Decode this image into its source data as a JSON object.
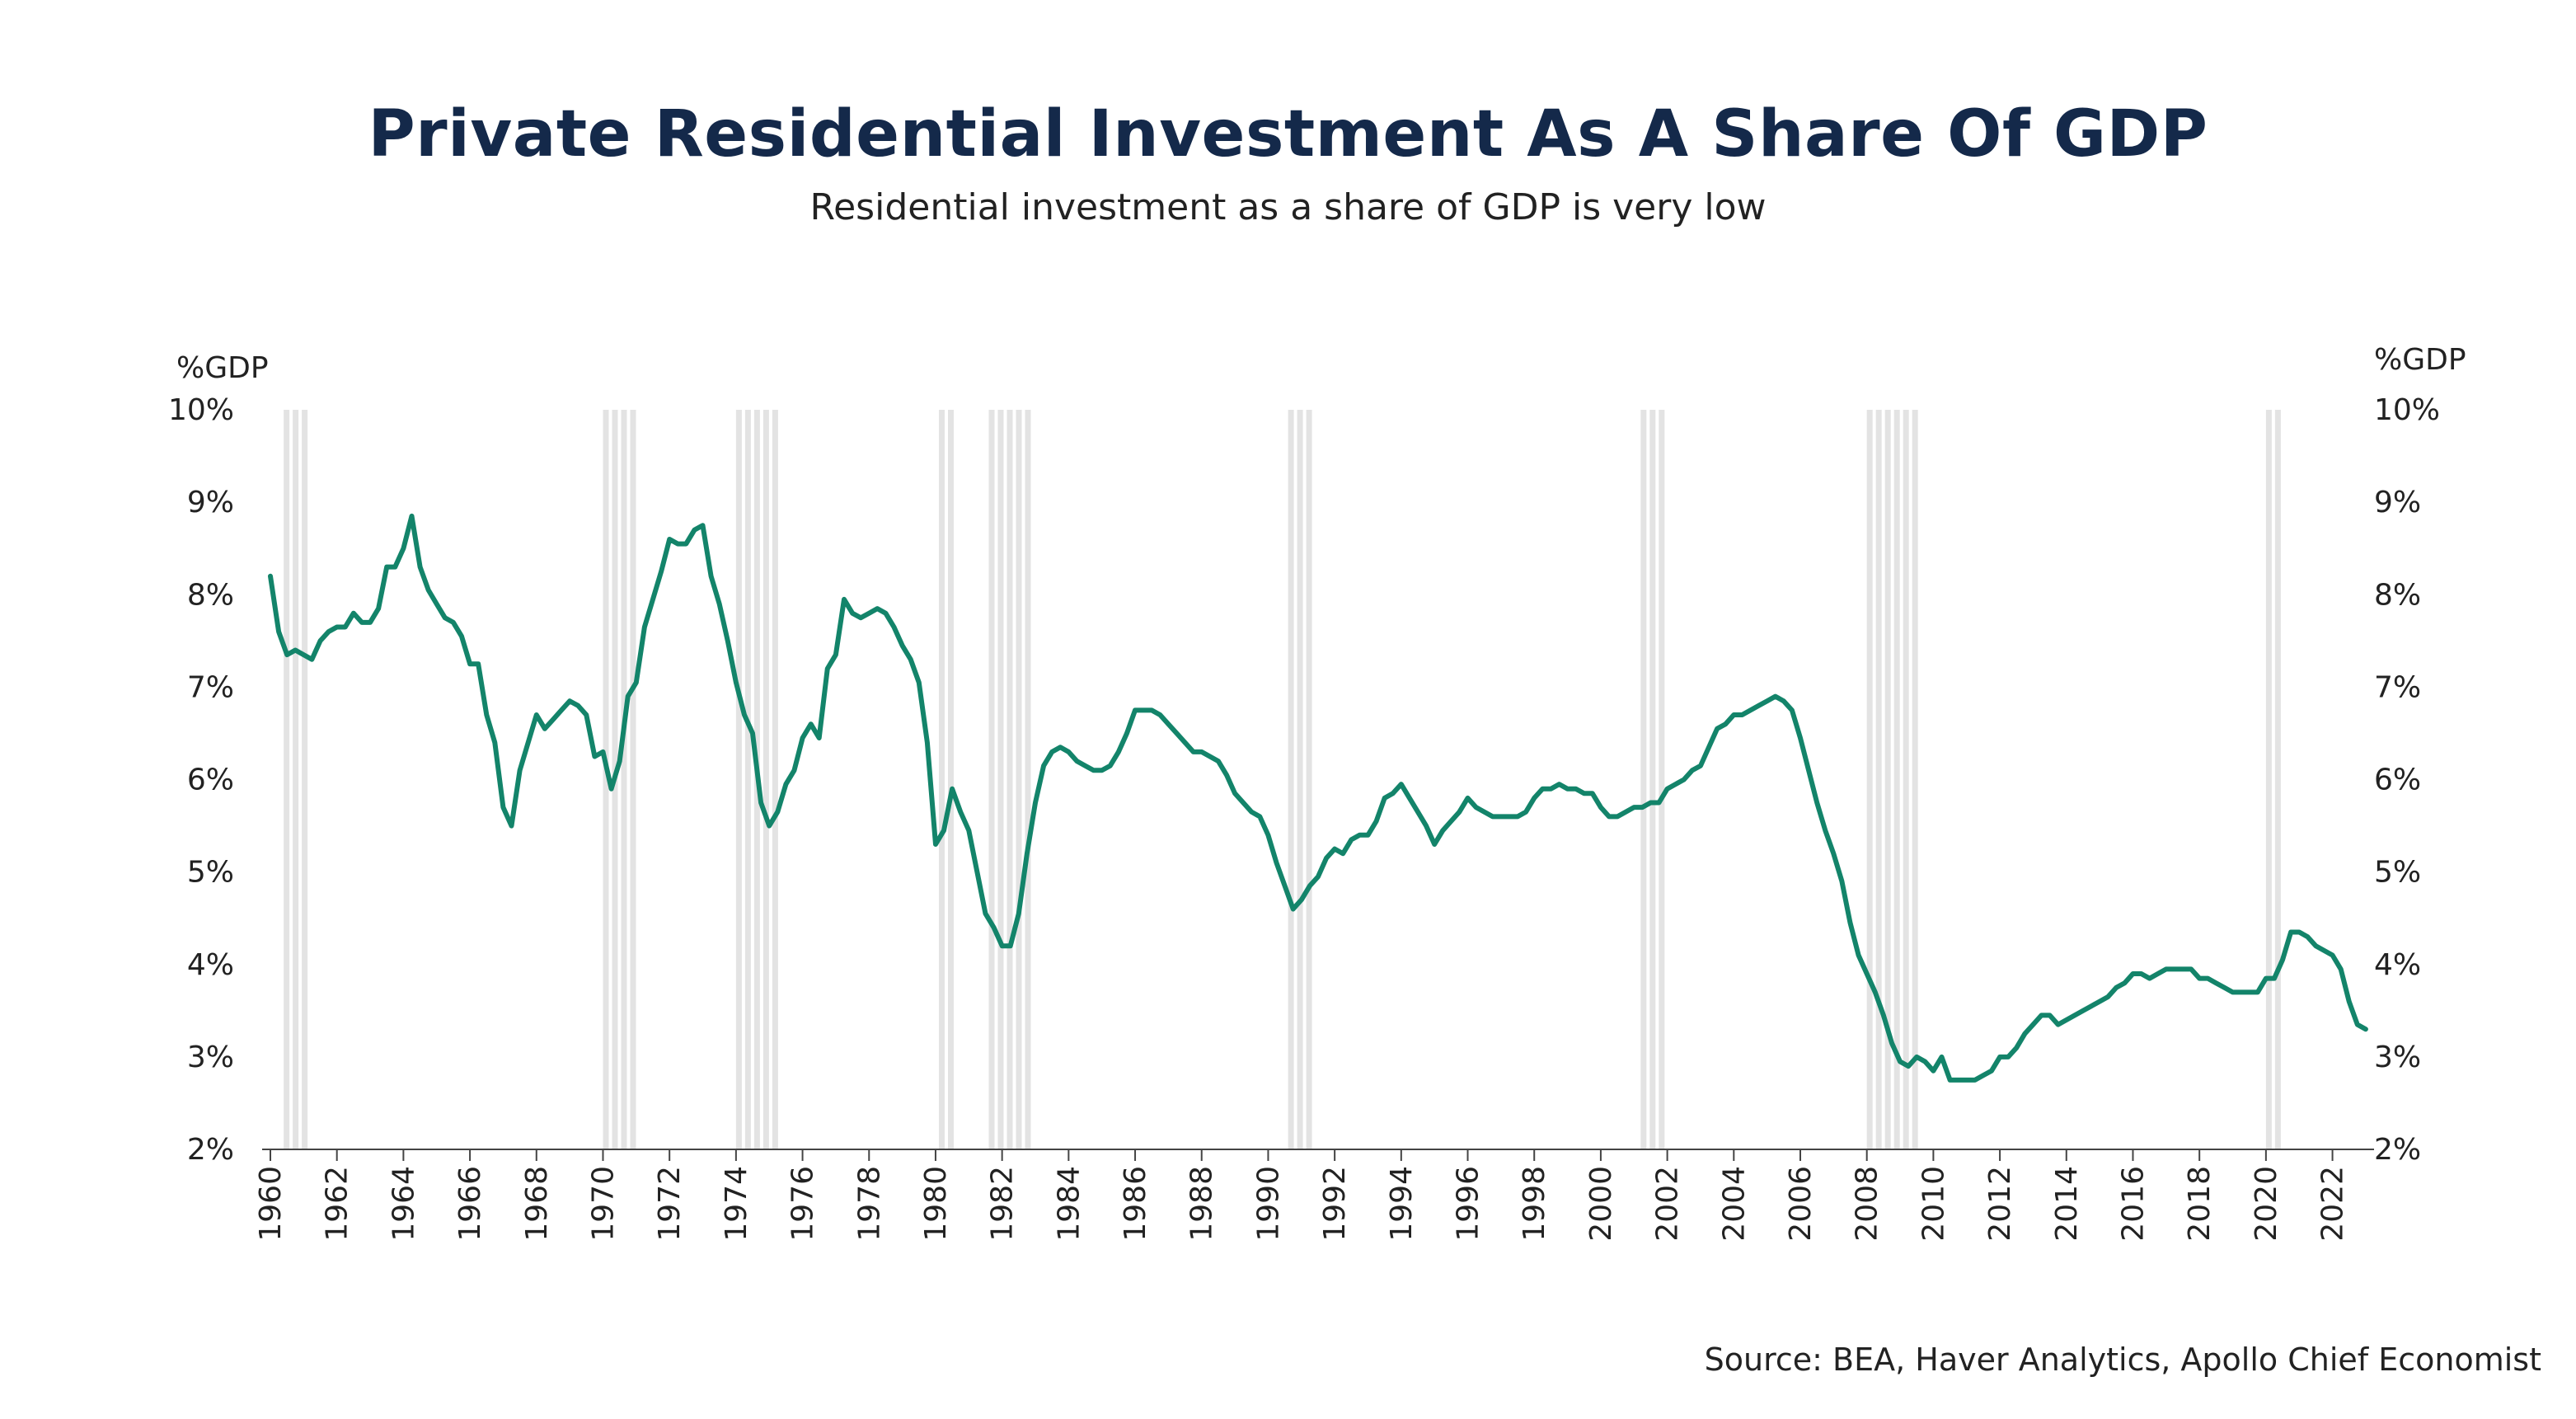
{
  "title": "Private Residential Investment As A Share Of GDP",
  "subtitle": "Residential investment as a share of GDP is very low",
  "source": "Source: BEA, Haver Analytics, Apollo Chief Economist",
  "colors": {
    "line": "#13846a",
    "recession": "#e3e3e3",
    "title": "#14294a"
  },
  "chart_data": {
    "type": "line",
    "title": "Private Residential Investment As A Share Of GDP",
    "subtitle": "Residential investment as a share of GDP is very low",
    "ylabel_left": "%GDP",
    "ylabel_right": "%GDP",
    "ylim": [
      2,
      10
    ],
    "xlim": [
      1960,
      2023.25
    ],
    "yticks": [
      "2%",
      "3%",
      "4%",
      "5%",
      "6%",
      "7%",
      "8%",
      "9%",
      "10%"
    ],
    "xticks": [
      "1960",
      "1962",
      "1964",
      "1966",
      "1968",
      "1970",
      "1972",
      "1974",
      "1976",
      "1978",
      "1980",
      "1982",
      "1984",
      "1986",
      "1988",
      "1990",
      "1992",
      "1994",
      "1996",
      "1998",
      "2000",
      "2002",
      "2004",
      "2006",
      "2008",
      "2010",
      "2012",
      "2014",
      "2016",
      "2018",
      "2020",
      "2022"
    ],
    "grid": false,
    "recessions": [
      [
        1960.4,
        1961.1
      ],
      [
        1970.0,
        1970.9
      ],
      [
        1974.0,
        1975.2
      ],
      [
        1980.1,
        1980.5
      ],
      [
        1981.6,
        1982.9
      ],
      [
        1990.6,
        1991.2
      ],
      [
        2001.2,
        2001.9
      ],
      [
        2008.0,
        2009.5
      ],
      [
        2020.0,
        2020.4
      ]
    ],
    "series": [
      {
        "values": [
          [
            1960.0,
            8.2
          ],
          [
            1960.25,
            7.6
          ],
          [
            1960.5,
            7.35
          ],
          [
            1960.75,
            7.4
          ],
          [
            1961.0,
            7.35
          ],
          [
            1961.25,
            7.3
          ],
          [
            1961.5,
            7.5
          ],
          [
            1961.75,
            7.6
          ],
          [
            1962.0,
            7.65
          ],
          [
            1962.25,
            7.65
          ],
          [
            1962.5,
            7.8
          ],
          [
            1962.75,
            7.7
          ],
          [
            1963.0,
            7.7
          ],
          [
            1963.25,
            7.85
          ],
          [
            1963.5,
            8.3
          ],
          [
            1963.75,
            8.3
          ],
          [
            1964.0,
            8.5
          ],
          [
            1964.25,
            8.85
          ],
          [
            1964.5,
            8.3
          ],
          [
            1964.75,
            8.05
          ],
          [
            1965.0,
            7.9
          ],
          [
            1965.25,
            7.75
          ],
          [
            1965.5,
            7.7
          ],
          [
            1965.75,
            7.55
          ],
          [
            1966.0,
            7.25
          ],
          [
            1966.25,
            7.25
          ],
          [
            1966.5,
            6.7
          ],
          [
            1966.75,
            6.4
          ],
          [
            1967.0,
            5.7
          ],
          [
            1967.25,
            5.5
          ],
          [
            1967.5,
            6.1
          ],
          [
            1967.75,
            6.4
          ],
          [
            1968.0,
            6.7
          ],
          [
            1968.25,
            6.55
          ],
          [
            1968.5,
            6.65
          ],
          [
            1968.75,
            6.75
          ],
          [
            1969.0,
            6.85
          ],
          [
            1969.25,
            6.8
          ],
          [
            1969.5,
            6.7
          ],
          [
            1969.75,
            6.25
          ],
          [
            1970.0,
            6.3
          ],
          [
            1970.25,
            5.9
          ],
          [
            1970.5,
            6.2
          ],
          [
            1970.75,
            6.9
          ],
          [
            1971.0,
            7.05
          ],
          [
            1971.25,
            7.65
          ],
          [
            1971.5,
            7.95
          ],
          [
            1971.75,
            8.25
          ],
          [
            1972.0,
            8.6
          ],
          [
            1972.25,
            8.55
          ],
          [
            1972.5,
            8.55
          ],
          [
            1972.75,
            8.7
          ],
          [
            1973.0,
            8.75
          ],
          [
            1973.25,
            8.2
          ],
          [
            1973.5,
            7.9
          ],
          [
            1973.75,
            7.5
          ],
          [
            1974.0,
            7.05
          ],
          [
            1974.25,
            6.7
          ],
          [
            1974.5,
            6.5
          ],
          [
            1974.75,
            5.75
          ],
          [
            1975.0,
            5.5
          ],
          [
            1975.25,
            5.65
          ],
          [
            1975.5,
            5.95
          ],
          [
            1975.75,
            6.1
          ],
          [
            1976.0,
            6.45
          ],
          [
            1976.25,
            6.6
          ],
          [
            1976.5,
            6.45
          ],
          [
            1976.75,
            7.2
          ],
          [
            1977.0,
            7.35
          ],
          [
            1977.25,
            7.95
          ],
          [
            1977.5,
            7.8
          ],
          [
            1977.75,
            7.75
          ],
          [
            1978.0,
            7.8
          ],
          [
            1978.25,
            7.85
          ],
          [
            1978.5,
            7.8
          ],
          [
            1978.75,
            7.65
          ],
          [
            1979.0,
            7.45
          ],
          [
            1979.25,
            7.3
          ],
          [
            1979.5,
            7.05
          ],
          [
            1979.75,
            6.4
          ],
          [
            1980.0,
            5.3
          ],
          [
            1980.25,
            5.45
          ],
          [
            1980.5,
            5.9
          ],
          [
            1980.75,
            5.65
          ],
          [
            1981.0,
            5.45
          ],
          [
            1981.25,
            5.0
          ],
          [
            1981.5,
            4.55
          ],
          [
            1981.75,
            4.4
          ],
          [
            1982.0,
            4.2
          ],
          [
            1982.25,
            4.2
          ],
          [
            1982.5,
            4.55
          ],
          [
            1982.75,
            5.2
          ],
          [
            1983.0,
            5.75
          ],
          [
            1983.25,
            6.15
          ],
          [
            1983.5,
            6.3
          ],
          [
            1983.75,
            6.35
          ],
          [
            1984.0,
            6.3
          ],
          [
            1984.25,
            6.2
          ],
          [
            1984.5,
            6.15
          ],
          [
            1984.75,
            6.1
          ],
          [
            1985.0,
            6.1
          ],
          [
            1985.25,
            6.15
          ],
          [
            1985.5,
            6.3
          ],
          [
            1985.75,
            6.5
          ],
          [
            1986.0,
            6.75
          ],
          [
            1986.25,
            6.75
          ],
          [
            1986.5,
            6.75
          ],
          [
            1986.75,
            6.7
          ],
          [
            1987.0,
            6.6
          ],
          [
            1987.25,
            6.5
          ],
          [
            1987.5,
            6.4
          ],
          [
            1987.75,
            6.3
          ],
          [
            1988.0,
            6.3
          ],
          [
            1988.25,
            6.25
          ],
          [
            1988.5,
            6.2
          ],
          [
            1988.75,
            6.05
          ],
          [
            1989.0,
            5.85
          ],
          [
            1989.25,
            5.75
          ],
          [
            1989.5,
            5.65
          ],
          [
            1989.75,
            5.6
          ],
          [
            1990.0,
            5.4
          ],
          [
            1990.25,
            5.1
          ],
          [
            1990.5,
            4.85
          ],
          [
            1990.75,
            4.6
          ],
          [
            1991.0,
            4.7
          ],
          [
            1991.25,
            4.85
          ],
          [
            1991.5,
            4.95
          ],
          [
            1991.75,
            5.15
          ],
          [
            1992.0,
            5.25
          ],
          [
            1992.25,
            5.2
          ],
          [
            1992.5,
            5.35
          ],
          [
            1992.75,
            5.4
          ],
          [
            1993.0,
            5.4
          ],
          [
            1993.25,
            5.55
          ],
          [
            1993.5,
            5.8
          ],
          [
            1993.75,
            5.85
          ],
          [
            1994.0,
            5.95
          ],
          [
            1994.25,
            5.8
          ],
          [
            1994.5,
            5.65
          ],
          [
            1994.75,
            5.5
          ],
          [
            1995.0,
            5.3
          ],
          [
            1995.25,
            5.45
          ],
          [
            1995.5,
            5.55
          ],
          [
            1995.75,
            5.65
          ],
          [
            1996.0,
            5.8
          ],
          [
            1996.25,
            5.7
          ],
          [
            1996.5,
            5.65
          ],
          [
            1996.75,
            5.6
          ],
          [
            1997.0,
            5.6
          ],
          [
            1997.25,
            5.6
          ],
          [
            1997.5,
            5.6
          ],
          [
            1997.75,
            5.65
          ],
          [
            1998.0,
            5.8
          ],
          [
            1998.25,
            5.9
          ],
          [
            1998.5,
            5.9
          ],
          [
            1998.75,
            5.95
          ],
          [
            1999.0,
            5.9
          ],
          [
            1999.25,
            5.9
          ],
          [
            1999.5,
            5.85
          ],
          [
            1999.75,
            5.85
          ],
          [
            2000.0,
            5.7
          ],
          [
            2000.25,
            5.6
          ],
          [
            2000.5,
            5.6
          ],
          [
            2000.75,
            5.65
          ],
          [
            2001.0,
            5.7
          ],
          [
            2001.25,
            5.7
          ],
          [
            2001.5,
            5.75
          ],
          [
            2001.75,
            5.75
          ],
          [
            2002.0,
            5.9
          ],
          [
            2002.25,
            5.95
          ],
          [
            2002.5,
            6.0
          ],
          [
            2002.75,
            6.1
          ],
          [
            2003.0,
            6.15
          ],
          [
            2003.25,
            6.35
          ],
          [
            2003.5,
            6.55
          ],
          [
            2003.75,
            6.6
          ],
          [
            2004.0,
            6.7
          ],
          [
            2004.25,
            6.7
          ],
          [
            2004.5,
            6.75
          ],
          [
            2004.75,
            6.8
          ],
          [
            2005.0,
            6.85
          ],
          [
            2005.25,
            6.9
          ],
          [
            2005.5,
            6.85
          ],
          [
            2005.75,
            6.75
          ],
          [
            2006.0,
            6.45
          ],
          [
            2006.25,
            6.1
          ],
          [
            2006.5,
            5.75
          ],
          [
            2006.75,
            5.45
          ],
          [
            2007.0,
            5.2
          ],
          [
            2007.25,
            4.9
          ],
          [
            2007.5,
            4.45
          ],
          [
            2007.75,
            4.1
          ],
          [
            2008.0,
            3.9
          ],
          [
            2008.25,
            3.7
          ],
          [
            2008.5,
            3.45
          ],
          [
            2008.75,
            3.15
          ],
          [
            2009.0,
            2.95
          ],
          [
            2009.25,
            2.9
          ],
          [
            2009.5,
            3.0
          ],
          [
            2009.75,
            2.95
          ],
          [
            2010.0,
            2.85
          ],
          [
            2010.25,
            3.0
          ],
          [
            2010.5,
            2.75
          ],
          [
            2010.75,
            2.75
          ],
          [
            2011.0,
            2.75
          ],
          [
            2011.25,
            2.75
          ],
          [
            2011.5,
            2.8
          ],
          [
            2011.75,
            2.85
          ],
          [
            2012.0,
            3.0
          ],
          [
            2012.25,
            3.0
          ],
          [
            2012.5,
            3.1
          ],
          [
            2012.75,
            3.25
          ],
          [
            2013.0,
            3.35
          ],
          [
            2013.25,
            3.45
          ],
          [
            2013.5,
            3.45
          ],
          [
            2013.75,
            3.35
          ],
          [
            2014.0,
            3.4
          ],
          [
            2014.25,
            3.45
          ],
          [
            2014.5,
            3.5
          ],
          [
            2014.75,
            3.55
          ],
          [
            2015.0,
            3.6
          ],
          [
            2015.25,
            3.65
          ],
          [
            2015.5,
            3.75
          ],
          [
            2015.75,
            3.8
          ],
          [
            2016.0,
            3.9
          ],
          [
            2016.25,
            3.9
          ],
          [
            2016.5,
            3.85
          ],
          [
            2016.75,
            3.9
          ],
          [
            2017.0,
            3.95
          ],
          [
            2017.25,
            3.95
          ],
          [
            2017.5,
            3.95
          ],
          [
            2017.75,
            3.95
          ],
          [
            2018.0,
            3.85
          ],
          [
            2018.25,
            3.85
          ],
          [
            2018.5,
            3.8
          ],
          [
            2018.75,
            3.75
          ],
          [
            2019.0,
            3.7
          ],
          [
            2019.25,
            3.7
          ],
          [
            2019.5,
            3.7
          ],
          [
            2019.75,
            3.7
          ],
          [
            2020.0,
            3.85
          ],
          [
            2020.25,
            3.85
          ],
          [
            2020.5,
            4.05
          ],
          [
            2020.75,
            4.35
          ],
          [
            2021.0,
            4.35
          ],
          [
            2021.25,
            4.3
          ],
          [
            2021.5,
            4.2
          ],
          [
            2021.75,
            4.15
          ],
          [
            2022.0,
            4.1
          ],
          [
            2022.25,
            3.95
          ],
          [
            2022.5,
            3.6
          ],
          [
            2022.75,
            3.35
          ],
          [
            2023.0,
            3.3
          ]
        ]
      }
    ]
  }
}
